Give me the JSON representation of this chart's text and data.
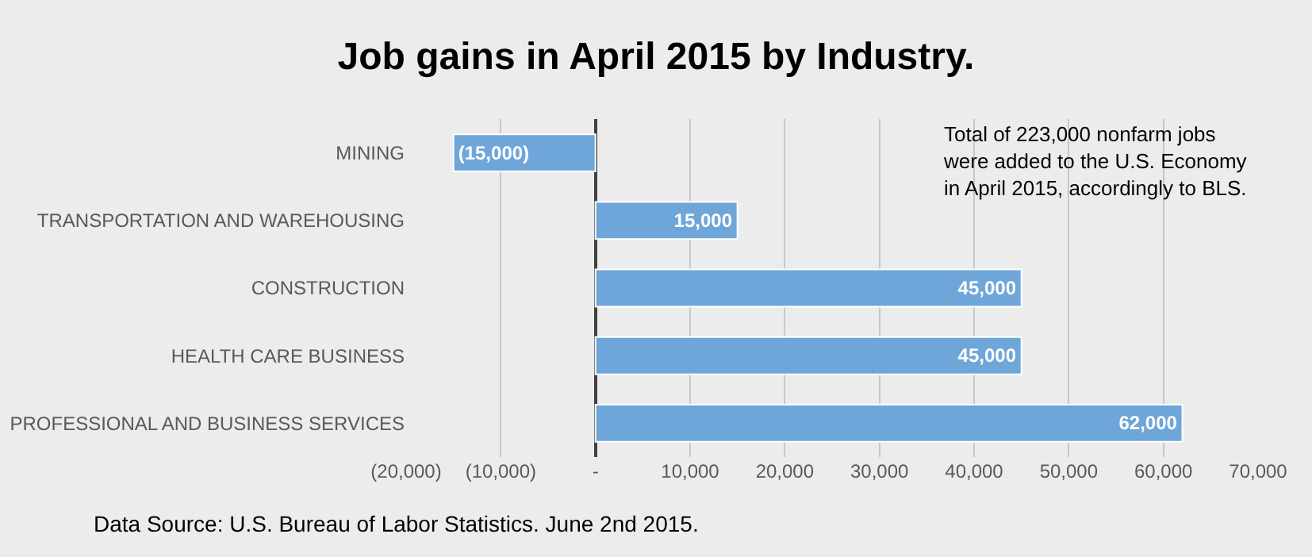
{
  "chart_data": {
    "type": "bar",
    "orientation": "horizontal",
    "title": "Job gains in April 2015 by Industry.",
    "categories": [
      "MINING",
      "TRANSPORTATION AND WAREHOUSING",
      "CONSTRUCTION",
      "HEALTH CARE BUSINESS",
      "PROFESSIONAL AND BUSINESS SERVICES"
    ],
    "values": [
      -15000,
      15000,
      45000,
      45000,
      62000
    ],
    "value_labels": [
      "(15,000)",
      "15,000",
      "45,000",
      "45,000",
      "62,000"
    ],
    "color": "#6fa6d9",
    "xlim": [
      -20000,
      70000
    ],
    "xticks": [
      {
        "value": -20000,
        "label": "(20,000)"
      },
      {
        "value": -10000,
        "label": "(10,000)"
      },
      {
        "value": 0,
        "label": "-"
      },
      {
        "value": 10000,
        "label": "10,000"
      },
      {
        "value": 20000,
        "label": "20,000"
      },
      {
        "value": 30000,
        "label": "30,000"
      },
      {
        "value": 40000,
        "label": "40,000"
      },
      {
        "value": 50000,
        "label": "50,000"
      },
      {
        "value": 60000,
        "label": "60,000"
      },
      {
        "value": 70000,
        "label": "70,000"
      }
    ],
    "grid": "x",
    "annotations": [
      "Total of 223,000 nonfarm jobs\nwere added to the U.S. Economy\nin April 2015, accordingly to BLS.",
      "Data Source: U.S. Bureau of Labor Statistics. June 2nd 2015."
    ]
  }
}
